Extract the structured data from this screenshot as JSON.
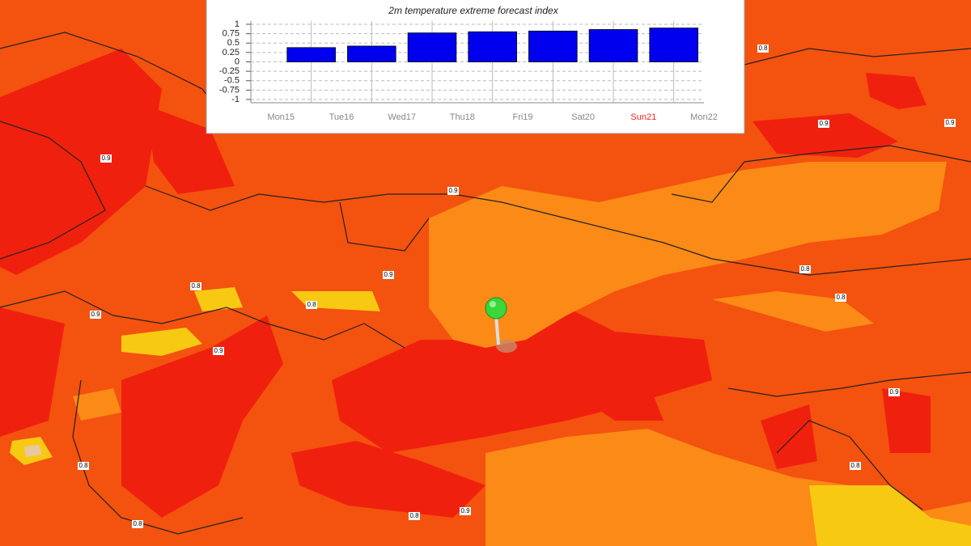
{
  "chart_data": {
    "type": "bar",
    "title": "2m temperature extreme forecast index",
    "categories": [
      "Mon15",
      "Tue16",
      "Wed17",
      "Thu18",
      "Fri19",
      "Sat20",
      "Sun21",
      "Mon22"
    ],
    "label_colors": [
      "#888888",
      "#888888",
      "#888888",
      "#888888",
      "#888888",
      "#888888",
      "#ff2020",
      "#888888"
    ],
    "values": [
      0.38,
      0.42,
      0.77,
      0.8,
      0.82,
      0.86,
      0.9,
      null
    ],
    "color": "#0000ee",
    "ylim": [
      -1,
      1
    ],
    "yticks": [
      -1,
      -0.75,
      -0.5,
      -0.25,
      0,
      0.25,
      0.5,
      0.75,
      1
    ],
    "grid": true
  },
  "map": {
    "labels": [
      "0.9",
      "0.9",
      "0.9",
      "0.8",
      "0.9",
      "0.9",
      "0.8",
      "0.9",
      "0.8",
      "0.8",
      "0.9",
      "0.8",
      "0.8",
      "0.8",
      "0.8",
      "0.9",
      "0.9",
      "0.8"
    ]
  }
}
